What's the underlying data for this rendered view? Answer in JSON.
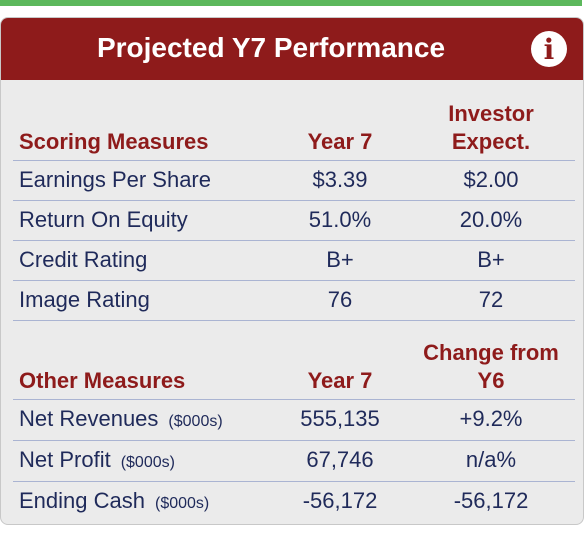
{
  "panel": {
    "title": "Projected Y7 Performance",
    "sections": [
      {
        "headers": [
          [
            "Scoring Measures"
          ],
          [
            "Year 7"
          ],
          [
            "Investor",
            "Expect."
          ]
        ],
        "rows": [
          {
            "label": "Earnings Per Share",
            "values": [
              "$3.39",
              "$2.00"
            ]
          },
          {
            "label": "Return On Equity",
            "values": [
              "51.0%",
              "20.0%"
            ]
          },
          {
            "label": "Credit Rating",
            "values": [
              "B+",
              "B+"
            ]
          },
          {
            "label": "Image Rating",
            "values": [
              "76",
              "72"
            ]
          }
        ]
      },
      {
        "headers": [
          [
            "Other Measures"
          ],
          [
            "Year 7"
          ],
          [
            "Change from",
            "Y6"
          ]
        ],
        "rows": [
          {
            "label": "Net Revenues",
            "unit": "($000s)",
            "values": [
              "555,135",
              "+9.2%"
            ]
          },
          {
            "label": "Net Profit",
            "unit": "($000s)",
            "values": [
              "67,746",
              "n/a%"
            ]
          },
          {
            "label": "Ending Cash",
            "unit": "($000s)",
            "values": [
              "-56,172",
              "-56,172"
            ]
          }
        ]
      }
    ]
  }
}
